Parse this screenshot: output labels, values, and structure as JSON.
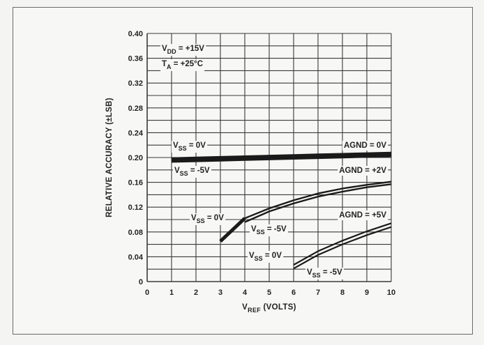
{
  "chart_data": {
    "type": "line",
    "title": "",
    "conditions": [
      {
        "main": "V",
        "sub": "DD",
        "rest": " = +15V"
      },
      {
        "main": "T",
        "sub": "A",
        "rest": " = +25°C"
      }
    ],
    "xlabel": {
      "main": "V",
      "sub": "REF",
      "rest": " (VOLTS)"
    },
    "ylabel": "RELATIVE ACCURACY (±LSB)",
    "xlim": [
      0,
      10
    ],
    "ylim": [
      0,
      0.4
    ],
    "xticks": [
      "0",
      "1",
      "2",
      "3",
      "4",
      "5",
      "6",
      "7",
      "8",
      "9",
      "10"
    ],
    "yticks": [
      "0",
      "0.04",
      "0.08",
      "0.12",
      "0.16",
      "0.20",
      "0.24",
      "0.28",
      "0.32",
      "0.36",
      "0.40"
    ],
    "grid": true,
    "series": [
      {
        "name": "AGND = 0V, VSS = 0V",
        "x": [
          1,
          2,
          3,
          4,
          5,
          6,
          7,
          8,
          9,
          10
        ],
        "y": [
          0.198,
          0.199,
          0.2,
          0.201,
          0.202,
          0.203,
          0.204,
          0.205,
          0.206,
          0.207
        ]
      },
      {
        "name": "AGND = 0V, VSS = -5V",
        "x": [
          1,
          2,
          3,
          4,
          5,
          6,
          7,
          8,
          9,
          10
        ],
        "y": [
          0.194,
          0.195,
          0.196,
          0.197,
          0.198,
          0.199,
          0.2,
          0.201,
          0.202,
          0.203
        ]
      },
      {
        "name": "AGND = +2V, VSS = 0V",
        "x": [
          3,
          4,
          5,
          6,
          7,
          8,
          9,
          10
        ],
        "y": [
          0.065,
          0.102,
          0.118,
          0.131,
          0.142,
          0.15,
          0.156,
          0.161
        ]
      },
      {
        "name": "AGND = +2V, VSS = -5V",
        "x": [
          4,
          5,
          6,
          7,
          8,
          9,
          10
        ],
        "y": [
          0.096,
          0.113,
          0.126,
          0.137,
          0.145,
          0.152,
          0.157
        ]
      },
      {
        "name": "AGND = +5V, VSS = 0V",
        "x": [
          6,
          7,
          8,
          9,
          10
        ],
        "y": [
          0.027,
          0.049,
          0.066,
          0.081,
          0.094
        ]
      },
      {
        "name": "AGND = +5V, VSS = -5V",
        "x": [
          6,
          7,
          8,
          9,
          10
        ],
        "y": [
          0.021,
          0.043,
          0.06,
          0.075,
          0.088
        ]
      }
    ],
    "annotations": [
      {
        "id": "vss0-top",
        "main": "V",
        "sub": "SS",
        "rest": " = 0V"
      },
      {
        "id": "vss5-top",
        "main": "V",
        "sub": "SS",
        "rest": " = -5V"
      },
      {
        "id": "agnd0",
        "main": "AGND = 0V"
      },
      {
        "id": "agnd2",
        "main": "AGND = +2V"
      },
      {
        "id": "vss0-mid",
        "main": "V",
        "sub": "SS",
        "rest": " = 0V"
      },
      {
        "id": "vss5-mid",
        "main": "V",
        "sub": "SS",
        "rest": " = -5V"
      },
      {
        "id": "agnd5",
        "main": "AGND = +5V"
      },
      {
        "id": "vss0-low",
        "main": "V",
        "sub": "SS",
        "rest": " = 0V"
      },
      {
        "id": "vss5-low",
        "main": "V",
        "sub": "SS",
        "rest": " = -5V"
      }
    ]
  }
}
